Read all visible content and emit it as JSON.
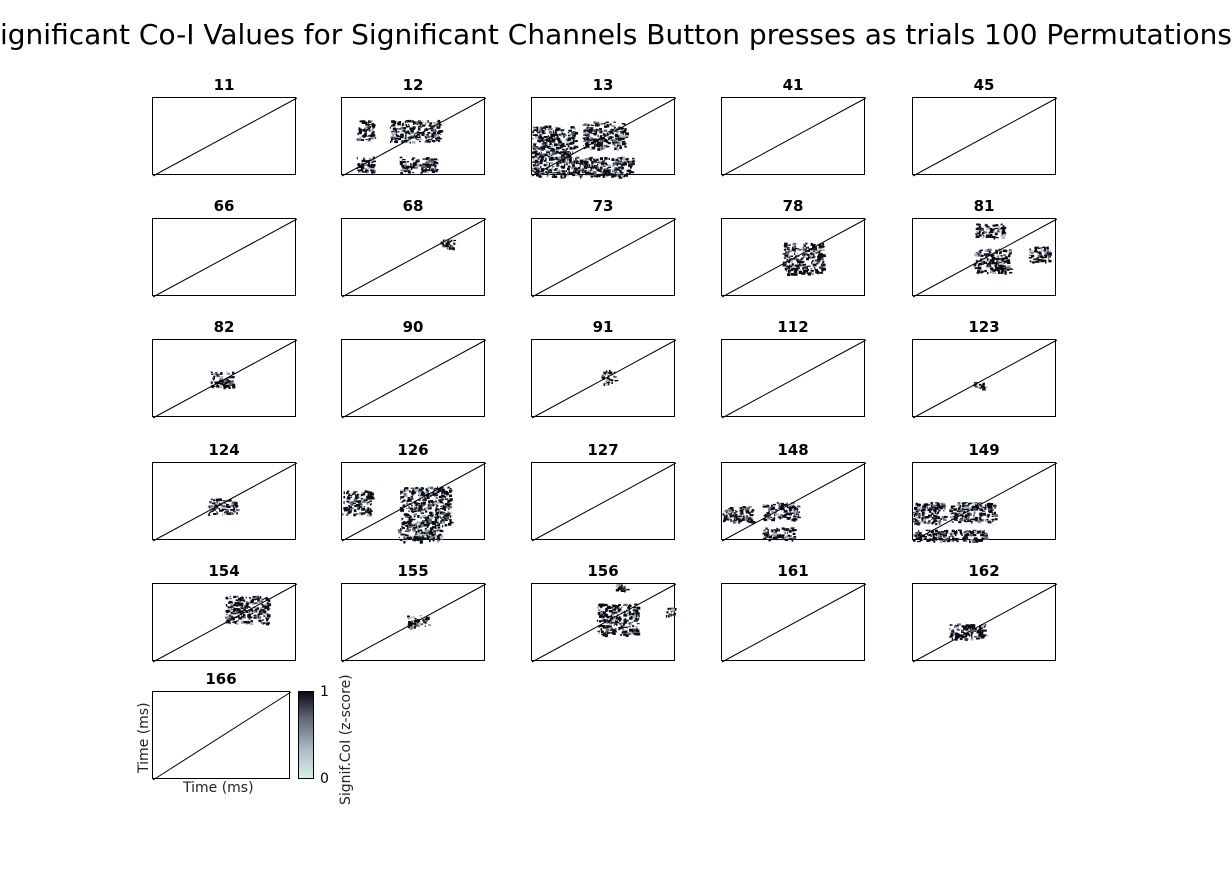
{
  "figure": {
    "title": "ignificant Co-I Values for Significant Channels Button presses as trials 100 Permutations"
  },
  "chart_data": {
    "type": "heatmap",
    "title": "ignificant Co-I Values for Significant Channels Button presses as trials 100 Permutations",
    "xlabel": "Time (ms)",
    "ylabel": "Time (ms)",
    "colorbar": {
      "label": "Signif.CoI (z-score)",
      "ticks": [
        "0",
        "1"
      ],
      "range": [
        0,
        1
      ]
    },
    "panels": [
      {
        "channel": "11",
        "clusters": []
      },
      {
        "channel": "12",
        "clusters": [
          [
            0.1,
            0.28,
            0.12,
            0.25
          ],
          [
            0.33,
            0.28,
            0.35,
            0.28
          ],
          [
            0.1,
            0.75,
            0.12,
            0.2
          ],
          [
            0.4,
            0.75,
            0.25,
            0.2
          ]
        ]
      },
      {
        "channel": "13",
        "clusters": [
          [
            0.0,
            0.35,
            0.3,
            0.4
          ],
          [
            0.35,
            0.3,
            0.3,
            0.35
          ],
          [
            0.0,
            0.75,
            0.35,
            0.25
          ],
          [
            0.35,
            0.75,
            0.35,
            0.25
          ]
        ]
      },
      {
        "channel": "41",
        "clusters": []
      },
      {
        "channel": "45",
        "clusters": []
      },
      {
        "channel": "66",
        "clusters": []
      },
      {
        "channel": "68",
        "clusters": [
          [
            0.68,
            0.25,
            0.1,
            0.12
          ]
        ]
      },
      {
        "channel": "73",
        "clusters": []
      },
      {
        "channel": "78",
        "clusters": [
          [
            0.42,
            0.3,
            0.28,
            0.4
          ]
        ]
      },
      {
        "channel": "81",
        "clusters": [
          [
            0.43,
            0.05,
            0.2,
            0.18
          ],
          [
            0.42,
            0.38,
            0.25,
            0.3
          ],
          [
            0.8,
            0.35,
            0.15,
            0.2
          ]
        ]
      },
      {
        "channel": "82",
        "clusters": [
          [
            0.4,
            0.4,
            0.15,
            0.2
          ]
        ]
      },
      {
        "channel": "90",
        "clusters": []
      },
      {
        "channel": "91",
        "clusters": [
          [
            0.48,
            0.38,
            0.1,
            0.18
          ]
        ]
      },
      {
        "channel": "112",
        "clusters": []
      },
      {
        "channel": "123",
        "clusters": [
          [
            0.42,
            0.52,
            0.08,
            0.1
          ]
        ]
      },
      {
        "channel": "124",
        "clusters": [
          [
            0.38,
            0.45,
            0.2,
            0.2
          ]
        ]
      },
      {
        "channel": "126",
        "clusters": [
          [
            0.0,
            0.35,
            0.2,
            0.3
          ],
          [
            0.4,
            0.3,
            0.35,
            0.5
          ],
          [
            0.38,
            0.8,
            0.3,
            0.2
          ]
        ]
      },
      {
        "channel": "127",
        "clusters": []
      },
      {
        "channel": "148",
        "clusters": [
          [
            0.0,
            0.55,
            0.22,
            0.2
          ],
          [
            0.28,
            0.5,
            0.25,
            0.22
          ],
          [
            0.28,
            0.82,
            0.22,
            0.16
          ]
        ]
      },
      {
        "channel": "149",
        "clusters": [
          [
            0.0,
            0.5,
            0.22,
            0.28
          ],
          [
            0.25,
            0.5,
            0.32,
            0.25
          ],
          [
            0.0,
            0.85,
            0.5,
            0.15
          ]
        ]
      },
      {
        "channel": "154",
        "clusters": [
          [
            0.5,
            0.15,
            0.3,
            0.35
          ]
        ]
      },
      {
        "channel": "155",
        "clusters": [
          [
            0.45,
            0.4,
            0.15,
            0.15
          ]
        ]
      },
      {
        "channel": "156",
        "clusters": [
          [
            0.45,
            0.25,
            0.28,
            0.4
          ],
          [
            0.58,
            0.0,
            0.08,
            0.08
          ],
          [
            0.92,
            0.3,
            0.07,
            0.1
          ]
        ]
      },
      {
        "channel": "161",
        "clusters": []
      },
      {
        "channel": "162",
        "clusters": [
          [
            0.25,
            0.5,
            0.25,
            0.2
          ]
        ]
      },
      {
        "channel": "166",
        "clusters": []
      }
    ]
  }
}
